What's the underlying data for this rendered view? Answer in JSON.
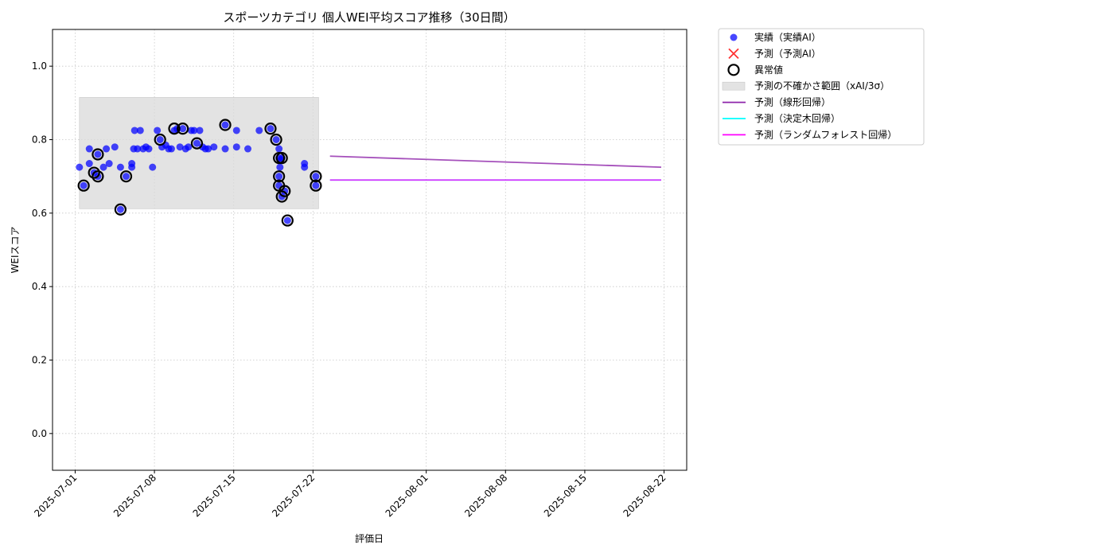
{
  "chart_data": {
    "type": "scatter",
    "title": "スポーツカテゴリ 個人WEI平均スコア推移（30日間）",
    "xlabel": "評価日",
    "ylabel": "WEIスコア",
    "xlim": [
      "2025-06-29",
      "2025-08-24"
    ],
    "ylim": [
      -0.1,
      1.1
    ],
    "grid": true,
    "legend_position": "outside-top-right",
    "x_ticks": [
      "2025-07-01",
      "2025-07-08",
      "2025-07-15",
      "2025-07-22",
      "2025-08-01",
      "2025-08-08",
      "2025-08-15",
      "2025-08-22"
    ],
    "y_ticks": [
      "0.0",
      "0.2",
      "0.4",
      "0.6",
      "0.8",
      "1.0"
    ],
    "legend": [
      {
        "label": "実績（実績AI）",
        "marker": "dot",
        "color": "#0000ff"
      },
      {
        "label": "予測（予測AI）",
        "marker": "x",
        "color": "#ff3333"
      },
      {
        "label": "異常値",
        "marker": "ring",
        "color": "#000000"
      },
      {
        "label": "予測の不確かさ範囲（xAI/3σ）",
        "marker": "band",
        "color": "#d9d9d9"
      },
      {
        "label": "予測（線形回帰）",
        "marker": "line",
        "color": "#8e24aa"
      },
      {
        "label": "予測（決定木回帰）",
        "marker": "line",
        "color": "#00ffff"
      },
      {
        "label": "予測（ランダムフォレスト回帰）",
        "marker": "line",
        "color": "#ff00ff"
      }
    ],
    "uncertainty_band": {
      "x_start": "2025-07-01 09:00",
      "x_end": "2025-07-22 12:00",
      "y_low": 0.612,
      "y_high": 0.915,
      "color": "#d9d9d9"
    },
    "actual": {
      "name": "実績（実績AI）",
      "color": "#0000ff",
      "points": [
        [
          "2025-07-01 09:00",
          0.725
        ],
        [
          "2025-07-01 18:00",
          0.675
        ],
        [
          "2025-07-02 06:00",
          0.775
        ],
        [
          "2025-07-02 06:00",
          0.735
        ],
        [
          "2025-07-02 16:00",
          0.71
        ],
        [
          "2025-07-03 00:00",
          0.76
        ],
        [
          "2025-07-03 00:00",
          0.7
        ],
        [
          "2025-07-03 12:00",
          0.725
        ],
        [
          "2025-07-03 18:00",
          0.775
        ],
        [
          "2025-07-04 00:00",
          0.735
        ],
        [
          "2025-07-04 12:00",
          0.78
        ],
        [
          "2025-07-05 00:00",
          0.61
        ],
        [
          "2025-07-05 00:00",
          0.725
        ],
        [
          "2025-07-05 12:00",
          0.7
        ],
        [
          "2025-07-06 00:00",
          0.735
        ],
        [
          "2025-07-06 00:00",
          0.725
        ],
        [
          "2025-07-06 04:00",
          0.775
        ],
        [
          "2025-07-06 06:00",
          0.825
        ],
        [
          "2025-07-06 12:00",
          0.775
        ],
        [
          "2025-07-06 18:00",
          0.825
        ],
        [
          "2025-07-07 00:00",
          0.775
        ],
        [
          "2025-07-07 06:00",
          0.78
        ],
        [
          "2025-07-07 12:00",
          0.775
        ],
        [
          "2025-07-07 20:00",
          0.725
        ],
        [
          "2025-07-08 06:00",
          0.825
        ],
        [
          "2025-07-08 12:00",
          0.8
        ],
        [
          "2025-07-08 16:00",
          0.78
        ],
        [
          "2025-07-09 00:00",
          0.785
        ],
        [
          "2025-07-09 06:00",
          0.775
        ],
        [
          "2025-07-09 12:00",
          0.775
        ],
        [
          "2025-07-09 18:00",
          0.825
        ],
        [
          "2025-07-10 00:00",
          0.83
        ],
        [
          "2025-07-10 06:00",
          0.78
        ],
        [
          "2025-07-10 12:00",
          0.83
        ],
        [
          "2025-07-10 18:00",
          0.775
        ],
        [
          "2025-07-11 00:00",
          0.78
        ],
        [
          "2025-07-11 06:00",
          0.825
        ],
        [
          "2025-07-11 12:00",
          0.825
        ],
        [
          "2025-07-11 18:00",
          0.79
        ],
        [
          "2025-07-12 00:00",
          0.825
        ],
        [
          "2025-07-12 06:00",
          0.78
        ],
        [
          "2025-07-12 12:00",
          0.775
        ],
        [
          "2025-07-12 18:00",
          0.775
        ],
        [
          "2025-07-13 06:00",
          0.78
        ],
        [
          "2025-07-14 06:00",
          0.84
        ],
        [
          "2025-07-14 06:00",
          0.775
        ],
        [
          "2025-07-15 06:00",
          0.825
        ],
        [
          "2025-07-15 06:00",
          0.78
        ],
        [
          "2025-07-16 06:00",
          0.775
        ],
        [
          "2025-07-17 06:00",
          0.825
        ],
        [
          "2025-07-18 06:00",
          0.83
        ],
        [
          "2025-07-18 18:00",
          0.8
        ],
        [
          "2025-07-19 00:00",
          0.775
        ],
        [
          "2025-07-19 00:00",
          0.75
        ],
        [
          "2025-07-19 00:00",
          0.7
        ],
        [
          "2025-07-19 00:00",
          0.675
        ],
        [
          "2025-07-19 02:00",
          0.725
        ],
        [
          "2025-07-19 04:00",
          0.745
        ],
        [
          "2025-07-19 06:00",
          0.645
        ],
        [
          "2025-07-19 06:00",
          0.75
        ],
        [
          "2025-07-19 12:00",
          0.66
        ],
        [
          "2025-07-19 18:00",
          0.58
        ],
        [
          "2025-07-21 06:00",
          0.735
        ],
        [
          "2025-07-21 06:00",
          0.725
        ],
        [
          "2025-07-22 06:00",
          0.7
        ],
        [
          "2025-07-22 06:00",
          0.675
        ]
      ]
    },
    "anomalies": {
      "name": "異常値",
      "points": [
        [
          "2025-07-01 18:00",
          0.675
        ],
        [
          "2025-07-02 16:00",
          0.71
        ],
        [
          "2025-07-03 00:00",
          0.76
        ],
        [
          "2025-07-03 00:00",
          0.7
        ],
        [
          "2025-07-05 00:00",
          0.61
        ],
        [
          "2025-07-05 12:00",
          0.7
        ],
        [
          "2025-07-08 12:00",
          0.8
        ],
        [
          "2025-07-09 18:00",
          0.83
        ],
        [
          "2025-07-10 12:00",
          0.83
        ],
        [
          "2025-07-11 18:00",
          0.79
        ],
        [
          "2025-07-14 06:00",
          0.84
        ],
        [
          "2025-07-18 06:00",
          0.83
        ],
        [
          "2025-07-18 18:00",
          0.8
        ],
        [
          "2025-07-19 00:00",
          0.75
        ],
        [
          "2025-07-19 00:00",
          0.7
        ],
        [
          "2025-07-19 00:00",
          0.675
        ],
        [
          "2025-07-19 06:00",
          0.645
        ],
        [
          "2025-07-19 06:00",
          0.75
        ],
        [
          "2025-07-19 12:00",
          0.66
        ],
        [
          "2025-07-19 18:00",
          0.58
        ],
        [
          "2025-07-22 06:00",
          0.7
        ],
        [
          "2025-07-22 06:00",
          0.675
        ]
      ]
    },
    "forecast_lines": [
      {
        "name": "予測（線形回帰）",
        "color": "#8e24aa",
        "points": [
          [
            "2025-07-23 12:00",
            0.755
          ],
          [
            "2025-08-21 18:00",
            0.725
          ]
        ]
      },
      {
        "name": "予測（決定木回帰）",
        "color": "#00ffff",
        "points": [
          [
            "2025-07-23 12:00",
            0.69
          ],
          [
            "2025-08-21 18:00",
            0.69
          ]
        ]
      },
      {
        "name": "予測（ランダムフォレスト回帰）",
        "color": "#ff00ff",
        "points": [
          [
            "2025-07-23 12:00",
            0.69
          ],
          [
            "2025-08-21 18:00",
            0.69
          ]
        ]
      }
    ]
  }
}
